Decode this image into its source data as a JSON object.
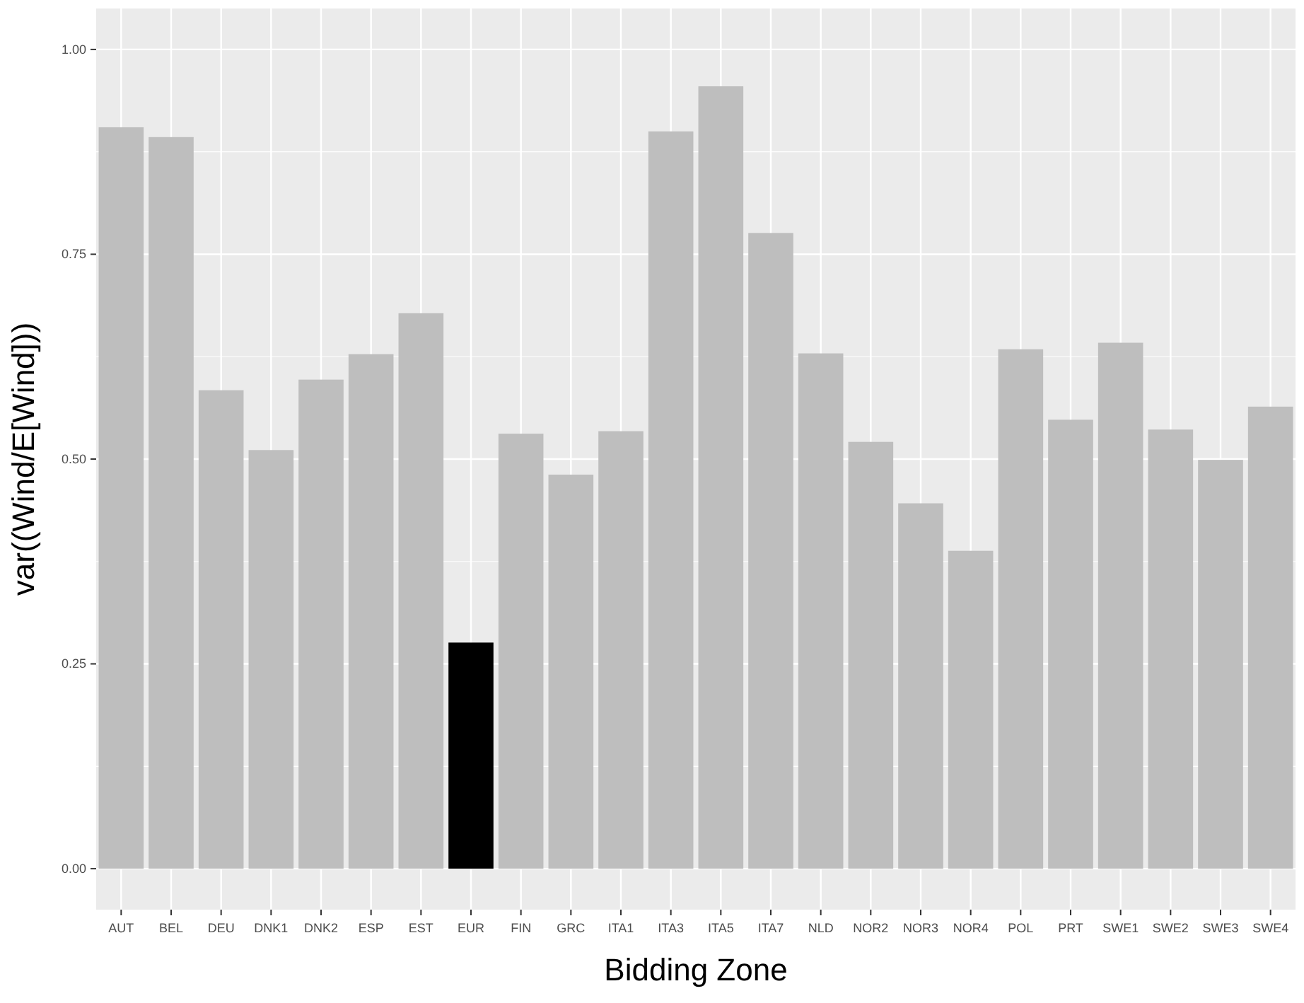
{
  "chart_data": {
    "type": "bar",
    "xlabel": "Bidding Zone",
    "ylabel": "var((Wind/E[Wind]))",
    "categories": [
      "AUT",
      "BEL",
      "DEU",
      "DNK1",
      "DNK2",
      "ESP",
      "EST",
      "EUR",
      "FIN",
      "GRC",
      "ITA1",
      "ITA3",
      "ITA5",
      "ITA7",
      "NLD",
      "NOR2",
      "NOR3",
      "NOR4",
      "POL",
      "PRT",
      "SWE1",
      "SWE2",
      "SWE3",
      "SWE4"
    ],
    "values": [
      0.905,
      0.893,
      0.584,
      0.511,
      0.597,
      0.628,
      0.678,
      0.276,
      0.531,
      0.481,
      0.534,
      0.9,
      0.955,
      0.776,
      0.629,
      0.521,
      0.446,
      0.388,
      0.634,
      0.548,
      0.642,
      0.536,
      0.499,
      0.564
    ],
    "colors": [
      "#bebebe",
      "#bebebe",
      "#bebebe",
      "#bebebe",
      "#bebebe",
      "#bebebe",
      "#bebebe",
      "#000000",
      "#bebebe",
      "#bebebe",
      "#bebebe",
      "#bebebe",
      "#bebebe",
      "#bebebe",
      "#bebebe",
      "#bebebe",
      "#bebebe",
      "#bebebe",
      "#bebebe",
      "#bebebe",
      "#bebebe",
      "#bebebe",
      "#bebebe",
      "#bebebe"
    ],
    "ylim": [
      -0.05,
      1.05
    ],
    "yticks": [
      {
        "value": 0,
        "label": "0.00"
      },
      {
        "value": 0.25,
        "label": "0.25"
      },
      {
        "value": 0.5,
        "label": "0.50"
      },
      {
        "value": 0.75,
        "label": "0.75"
      },
      {
        "value": 1,
        "label": "1.00"
      }
    ],
    "grid": true
  }
}
